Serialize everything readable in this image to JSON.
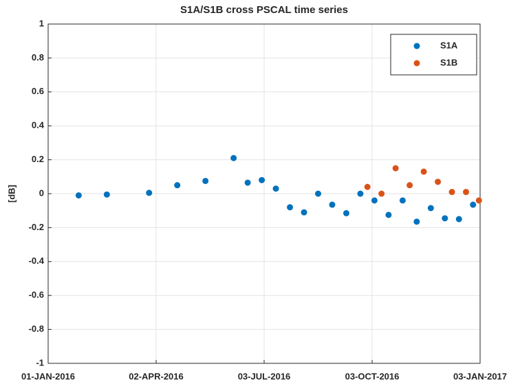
{
  "chart_data": {
    "type": "scatter",
    "title": "S1A/S1B cross PSCAL time series",
    "ylabel": "[dB]",
    "xlim": [
      "2016-01-01",
      "2017-01-03"
    ],
    "xticks": [
      {
        "value": "2016-01-01",
        "label": "01-JAN-2016"
      },
      {
        "value": "2016-04-02",
        "label": "02-APR-2016"
      },
      {
        "value": "2016-07-03",
        "label": "03-JUL-2016"
      },
      {
        "value": "2016-10-03",
        "label": "03-OCT-2016"
      },
      {
        "value": "2017-01-03",
        "label": "03-JAN-2017"
      }
    ],
    "ylim": [
      -1,
      1
    ],
    "yticks": [
      -1,
      -0.8,
      -0.6,
      -0.4,
      -0.2,
      0,
      0.2,
      0.4,
      0.6,
      0.8,
      1
    ],
    "grid": true,
    "legend": "upper right",
    "series": [
      {
        "name": "S1A",
        "color": "#0072BD",
        "x": [
          "2016-01-27",
          "2016-02-20",
          "2016-03-27",
          "2016-04-20",
          "2016-05-14",
          "2016-06-07",
          "2016-06-19",
          "2016-07-01",
          "2016-07-13",
          "2016-07-25",
          "2016-08-06",
          "2016-08-18",
          "2016-08-30",
          "2016-09-11",
          "2016-09-23",
          "2016-10-05",
          "2016-10-17",
          "2016-10-29",
          "2016-11-10",
          "2016-11-22",
          "2016-12-04",
          "2016-12-16",
          "2016-12-28"
        ],
        "values": [
          -0.01,
          -0.005,
          0.005,
          0.05,
          0.075,
          0.21,
          0.065,
          0.08,
          0.03,
          -0.08,
          -0.11,
          0,
          -0.065,
          -0.115,
          0,
          -0.04,
          -0.125,
          -0.04,
          -0.165,
          -0.085,
          -0.145,
          -0.15,
          -0.065
        ]
      },
      {
        "name": "S1B",
        "color": "#D95319",
        "x": [
          "2016-09-29",
          "2016-10-11",
          "2016-10-23",
          "2016-11-04",
          "2016-11-16",
          "2016-11-28",
          "2016-12-10",
          "2016-12-22",
          "2017-01-02"
        ],
        "values": [
          0.04,
          0,
          0.15,
          0.05,
          0.13,
          0.07,
          0.01,
          0.01,
          -0.04
        ]
      }
    ]
  }
}
